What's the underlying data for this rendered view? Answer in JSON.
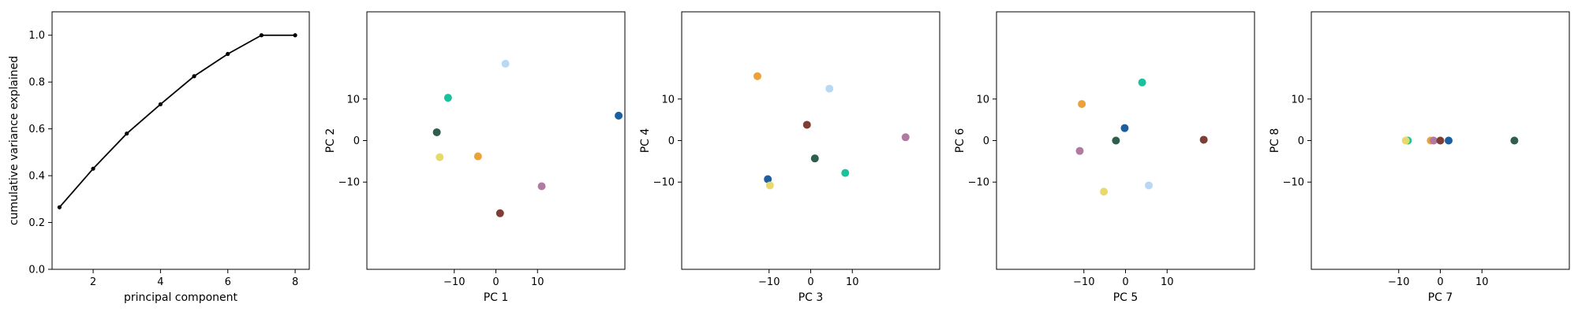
{
  "chart_data": [
    {
      "type": "line",
      "xlabel": "principal component",
      "ylabel": "cumulative variance explained",
      "xlim": [
        0.78,
        8.42
      ],
      "ylim": [
        0.0,
        1.1
      ],
      "xticks": [
        2,
        4,
        6,
        8
      ],
      "xtick_labels": [
        "2",
        "4",
        "6",
        "8"
      ],
      "yticks": [
        0.0,
        0.2,
        0.4,
        0.6,
        0.8,
        1.0
      ],
      "ytick_labels": [
        "0.0",
        "0.2",
        "0.4",
        "0.6",
        "0.8",
        "1.0"
      ],
      "grid": false,
      "series": [
        {
          "color": "#000000",
          "x": [
            1,
            2,
            3,
            4,
            5,
            6,
            7,
            8
          ],
          "y": [
            0.265,
            0.43,
            0.58,
            0.705,
            0.825,
            0.92,
            1.0,
            1.0
          ]
        }
      ]
    },
    {
      "type": "scatter",
      "xlabel": "PC 1",
      "ylabel": "PC 2",
      "xlim": [
        -31,
        31
      ],
      "ylim": [
        -31,
        31
      ],
      "xticks": [
        -10,
        0,
        10
      ],
      "xtick_labels": [
        "−10",
        "0",
        "10"
      ],
      "yticks": [
        -10,
        0,
        10
      ],
      "ytick_labels": [
        "−10",
        "0",
        "10"
      ],
      "grid": false,
      "points": [
        {
          "x": 2.3,
          "y": 18.5,
          "color": "#b9d8f5"
        },
        {
          "x": -11.5,
          "y": 10.3,
          "color": "#18c29a"
        },
        {
          "x": -14.2,
          "y": 2.0,
          "color": "#2f5f4c"
        },
        {
          "x": -13.5,
          "y": -4.0,
          "color": "#e8d96b"
        },
        {
          "x": -4.3,
          "y": -3.8,
          "color": "#eba23a"
        },
        {
          "x": 11.0,
          "y": -11.0,
          "color": "#b07aa1"
        },
        {
          "x": 1.0,
          "y": -17.5,
          "color": "#7d3e36"
        },
        {
          "x": 29.5,
          "y": 6.0,
          "color": "#1c5fa0"
        }
      ]
    },
    {
      "type": "scatter",
      "xlabel": "PC 3",
      "ylabel": "PC 4",
      "xlim": [
        -31,
        31
      ],
      "ylim": [
        -31,
        31
      ],
      "xticks": [
        -10,
        0,
        10
      ],
      "xtick_labels": [
        "−10",
        "0",
        "10"
      ],
      "yticks": [
        -10,
        0,
        10
      ],
      "ytick_labels": [
        "−10",
        "0",
        "10"
      ],
      "grid": false,
      "points": [
        {
          "x": -12.8,
          "y": 15.5,
          "color": "#eba23a"
        },
        {
          "x": 4.5,
          "y": 12.5,
          "color": "#b9d8f5"
        },
        {
          "x": -0.9,
          "y": 3.8,
          "color": "#7d3e36"
        },
        {
          "x": 22.8,
          "y": 0.8,
          "color": "#b07aa1"
        },
        {
          "x": 1.0,
          "y": -4.3,
          "color": "#2f5f4c"
        },
        {
          "x": 8.3,
          "y": -7.8,
          "color": "#18c29a"
        },
        {
          "x": -10.3,
          "y": -9.3,
          "color": "#1c5fa0"
        },
        {
          "x": -9.8,
          "y": -10.8,
          "color": "#e8d96b"
        }
      ]
    },
    {
      "type": "scatter",
      "xlabel": "PC 5",
      "ylabel": "PC 6",
      "xlim": [
        -31,
        31
      ],
      "ylim": [
        -31,
        31
      ],
      "xticks": [
        -10,
        0,
        10
      ],
      "xtick_labels": [
        "−10",
        "0",
        "10"
      ],
      "yticks": [
        -10,
        0,
        10
      ],
      "ytick_labels": [
        "−10",
        "0",
        "10"
      ],
      "grid": false,
      "points": [
        {
          "x": 4.0,
          "y": 14.0,
          "color": "#18c29a"
        },
        {
          "x": -10.5,
          "y": 8.8,
          "color": "#eba23a"
        },
        {
          "x": -0.2,
          "y": 3.0,
          "color": "#1c5fa0"
        },
        {
          "x": -2.3,
          "y": 0.0,
          "color": "#2f5f4c"
        },
        {
          "x": 18.8,
          "y": 0.2,
          "color": "#7d3e36"
        },
        {
          "x": -11.0,
          "y": -2.5,
          "color": "#b07aa1"
        },
        {
          "x": 5.6,
          "y": -10.8,
          "color": "#b9d8f5"
        },
        {
          "x": -5.2,
          "y": -12.3,
          "color": "#e8d96b"
        }
      ]
    },
    {
      "type": "scatter",
      "xlabel": "PC 7",
      "ylabel": "PC 8",
      "xlim": [
        -31,
        31
      ],
      "ylim": [
        -31,
        31
      ],
      "xticks": [
        -10,
        0,
        10
      ],
      "xtick_labels": [
        "−10",
        "0",
        "10"
      ],
      "yticks": [
        -10,
        0,
        10
      ],
      "ytick_labels": [
        "−10",
        "0",
        "10"
      ],
      "grid": false,
      "points": [
        {
          "x": -7.8,
          "y": 0.0,
          "color": "#18c29a"
        },
        {
          "x": -8.3,
          "y": 0.0,
          "color": "#e8d96b"
        },
        {
          "x": -2.3,
          "y": 0.0,
          "color": "#eba23a"
        },
        {
          "x": -1.6,
          "y": 0.0,
          "color": "#b07aa1"
        },
        {
          "x": 0.0,
          "y": 0.0,
          "color": "#7d3e36"
        },
        {
          "x": 2.0,
          "y": 0.0,
          "color": "#1c5fa0"
        },
        {
          "x": 17.8,
          "y": 0.0,
          "color": "#2f5f4c"
        }
      ]
    }
  ]
}
